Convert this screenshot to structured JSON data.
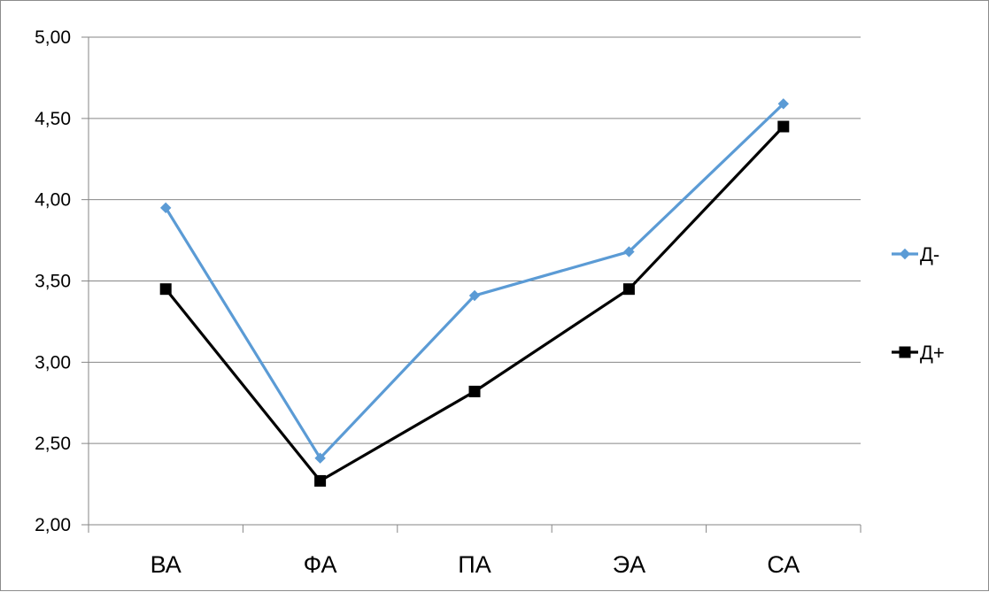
{
  "chart_data": {
    "type": "line",
    "title": "",
    "xlabel": "",
    "ylabel": "",
    "categories": [
      "ВА",
      "ФА",
      "ПА",
      "ЭА",
      "СА"
    ],
    "ylim": [
      2.0,
      5.0
    ],
    "y_ticks": [
      "2,00",
      "2,50",
      "3,00",
      "3,50",
      "4,00",
      "4,50",
      "5,00"
    ],
    "grid": "horizontal",
    "legend_position": "right",
    "series": [
      {
        "name": "Д-",
        "values": [
          3.95,
          2.41,
          3.41,
          3.68,
          4.59
        ],
        "color": "#5b9bd5",
        "marker": "diamond"
      },
      {
        "name": "Д+",
        "values": [
          3.45,
          2.27,
          2.82,
          3.45,
          4.45
        ],
        "color": "#000000",
        "marker": "square"
      }
    ]
  }
}
